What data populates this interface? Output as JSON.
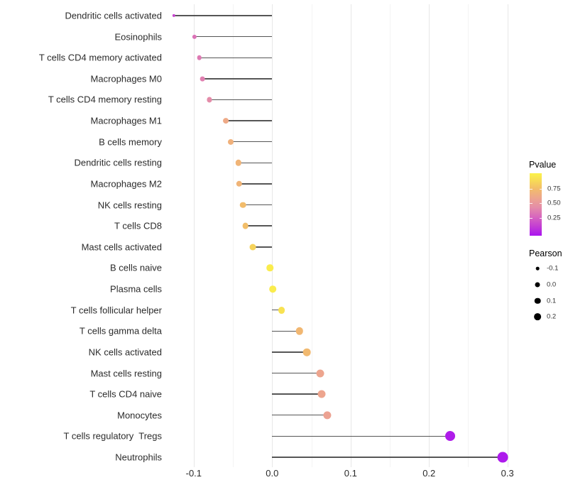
{
  "chart_data": {
    "type": "lollipop",
    "title": "",
    "xlabel": "",
    "ylabel": "",
    "grid": "vertical-only",
    "xlim": [
      -0.136,
      0.317
    ],
    "x_ticks": [
      {
        "value": -0.1,
        "label": "-0.1"
      },
      {
        "value": 0.0,
        "label": "0.0"
      },
      {
        "value": 0.1,
        "label": "0.1"
      },
      {
        "value": 0.2,
        "label": "0.2"
      },
      {
        "value": 0.3,
        "label": "0.3"
      }
    ],
    "x_minor_ticks": [
      -0.05,
      0.05,
      0.15,
      0.25
    ],
    "rows": [
      {
        "label": "Dendritic cells activated",
        "pearson": -0.125,
        "pvalue": 0.18
      },
      {
        "label": "Eosinophils",
        "pearson": -0.099,
        "pvalue": 0.35
      },
      {
        "label": "T cells CD4 memory activated",
        "pearson": -0.093,
        "pvalue": 0.38
      },
      {
        "label": "Macrophages M0",
        "pearson": -0.089,
        "pvalue": 0.4
      },
      {
        "label": "T cells CD4 memory resting",
        "pearson": -0.08,
        "pvalue": 0.45
      },
      {
        "label": "Macrophages M1",
        "pearson": -0.059,
        "pvalue": 0.63
      },
      {
        "label": "B cells memory",
        "pearson": -0.053,
        "pvalue": 0.68
      },
      {
        "label": "Dendritic cells resting",
        "pearson": -0.043,
        "pvalue": 0.7
      },
      {
        "label": "Macrophages M2",
        "pearson": -0.042,
        "pvalue": 0.7
      },
      {
        "label": "NK cells resting",
        "pearson": -0.037,
        "pvalue": 0.75
      },
      {
        "label": "T cells CD8",
        "pearson": -0.034,
        "pvalue": 0.76
      },
      {
        "label": "Mast cells activated",
        "pearson": -0.025,
        "pvalue": 0.85
      },
      {
        "label": "B cells naive",
        "pearson": -0.003,
        "pvalue": 0.97
      },
      {
        "label": "Plasma cells",
        "pearson": 0.001,
        "pvalue": 0.97
      },
      {
        "label": "T cells follicular helper",
        "pearson": 0.012,
        "pvalue": 0.92
      },
      {
        "label": "T cells gamma delta",
        "pearson": 0.035,
        "pvalue": 0.72
      },
      {
        "label": "NK cells activated",
        "pearson": 0.044,
        "pvalue": 0.73
      },
      {
        "label": "Mast cells resting",
        "pearson": 0.061,
        "pvalue": 0.6
      },
      {
        "label": "T cells CD4 naive",
        "pearson": 0.063,
        "pvalue": 0.6
      },
      {
        "label": "Monocytes",
        "pearson": 0.07,
        "pvalue": 0.58
      },
      {
        "label": "T cells regulatory  Tregs",
        "pearson": 0.227,
        "pvalue": 0.03
      },
      {
        "label": "Neutrophils",
        "pearson": 0.294,
        "pvalue": 0.02
      }
    ],
    "legend": {
      "color": {
        "title": "Pvalue",
        "ticks": [
          {
            "value": 0.75,
            "label": "0.75"
          },
          {
            "value": 0.5,
            "label": "0.50"
          },
          {
            "value": 0.25,
            "label": "0.25"
          }
        ],
        "gradient_stops": [
          {
            "t": 0.0,
            "color": "#AA14F0"
          },
          {
            "t": 0.15,
            "color": "#C33ED3"
          },
          {
            "t": 0.3,
            "color": "#D766BE"
          },
          {
            "t": 0.45,
            "color": "#E48CA9"
          },
          {
            "t": 0.6,
            "color": "#EDA58E"
          },
          {
            "t": 0.75,
            "color": "#F2BC6B"
          },
          {
            "t": 0.88,
            "color": "#F7DA56"
          },
          {
            "t": 1.0,
            "color": "#FBF24A"
          }
        ]
      },
      "size": {
        "title": "Pearson",
        "items": [
          {
            "value": -0.1,
            "label": "-0.1"
          },
          {
            "value": 0.0,
            "label": "0.0"
          },
          {
            "value": 0.1,
            "label": "0.1"
          },
          {
            "value": 0.2,
            "label": "0.2"
          }
        ]
      }
    }
  }
}
